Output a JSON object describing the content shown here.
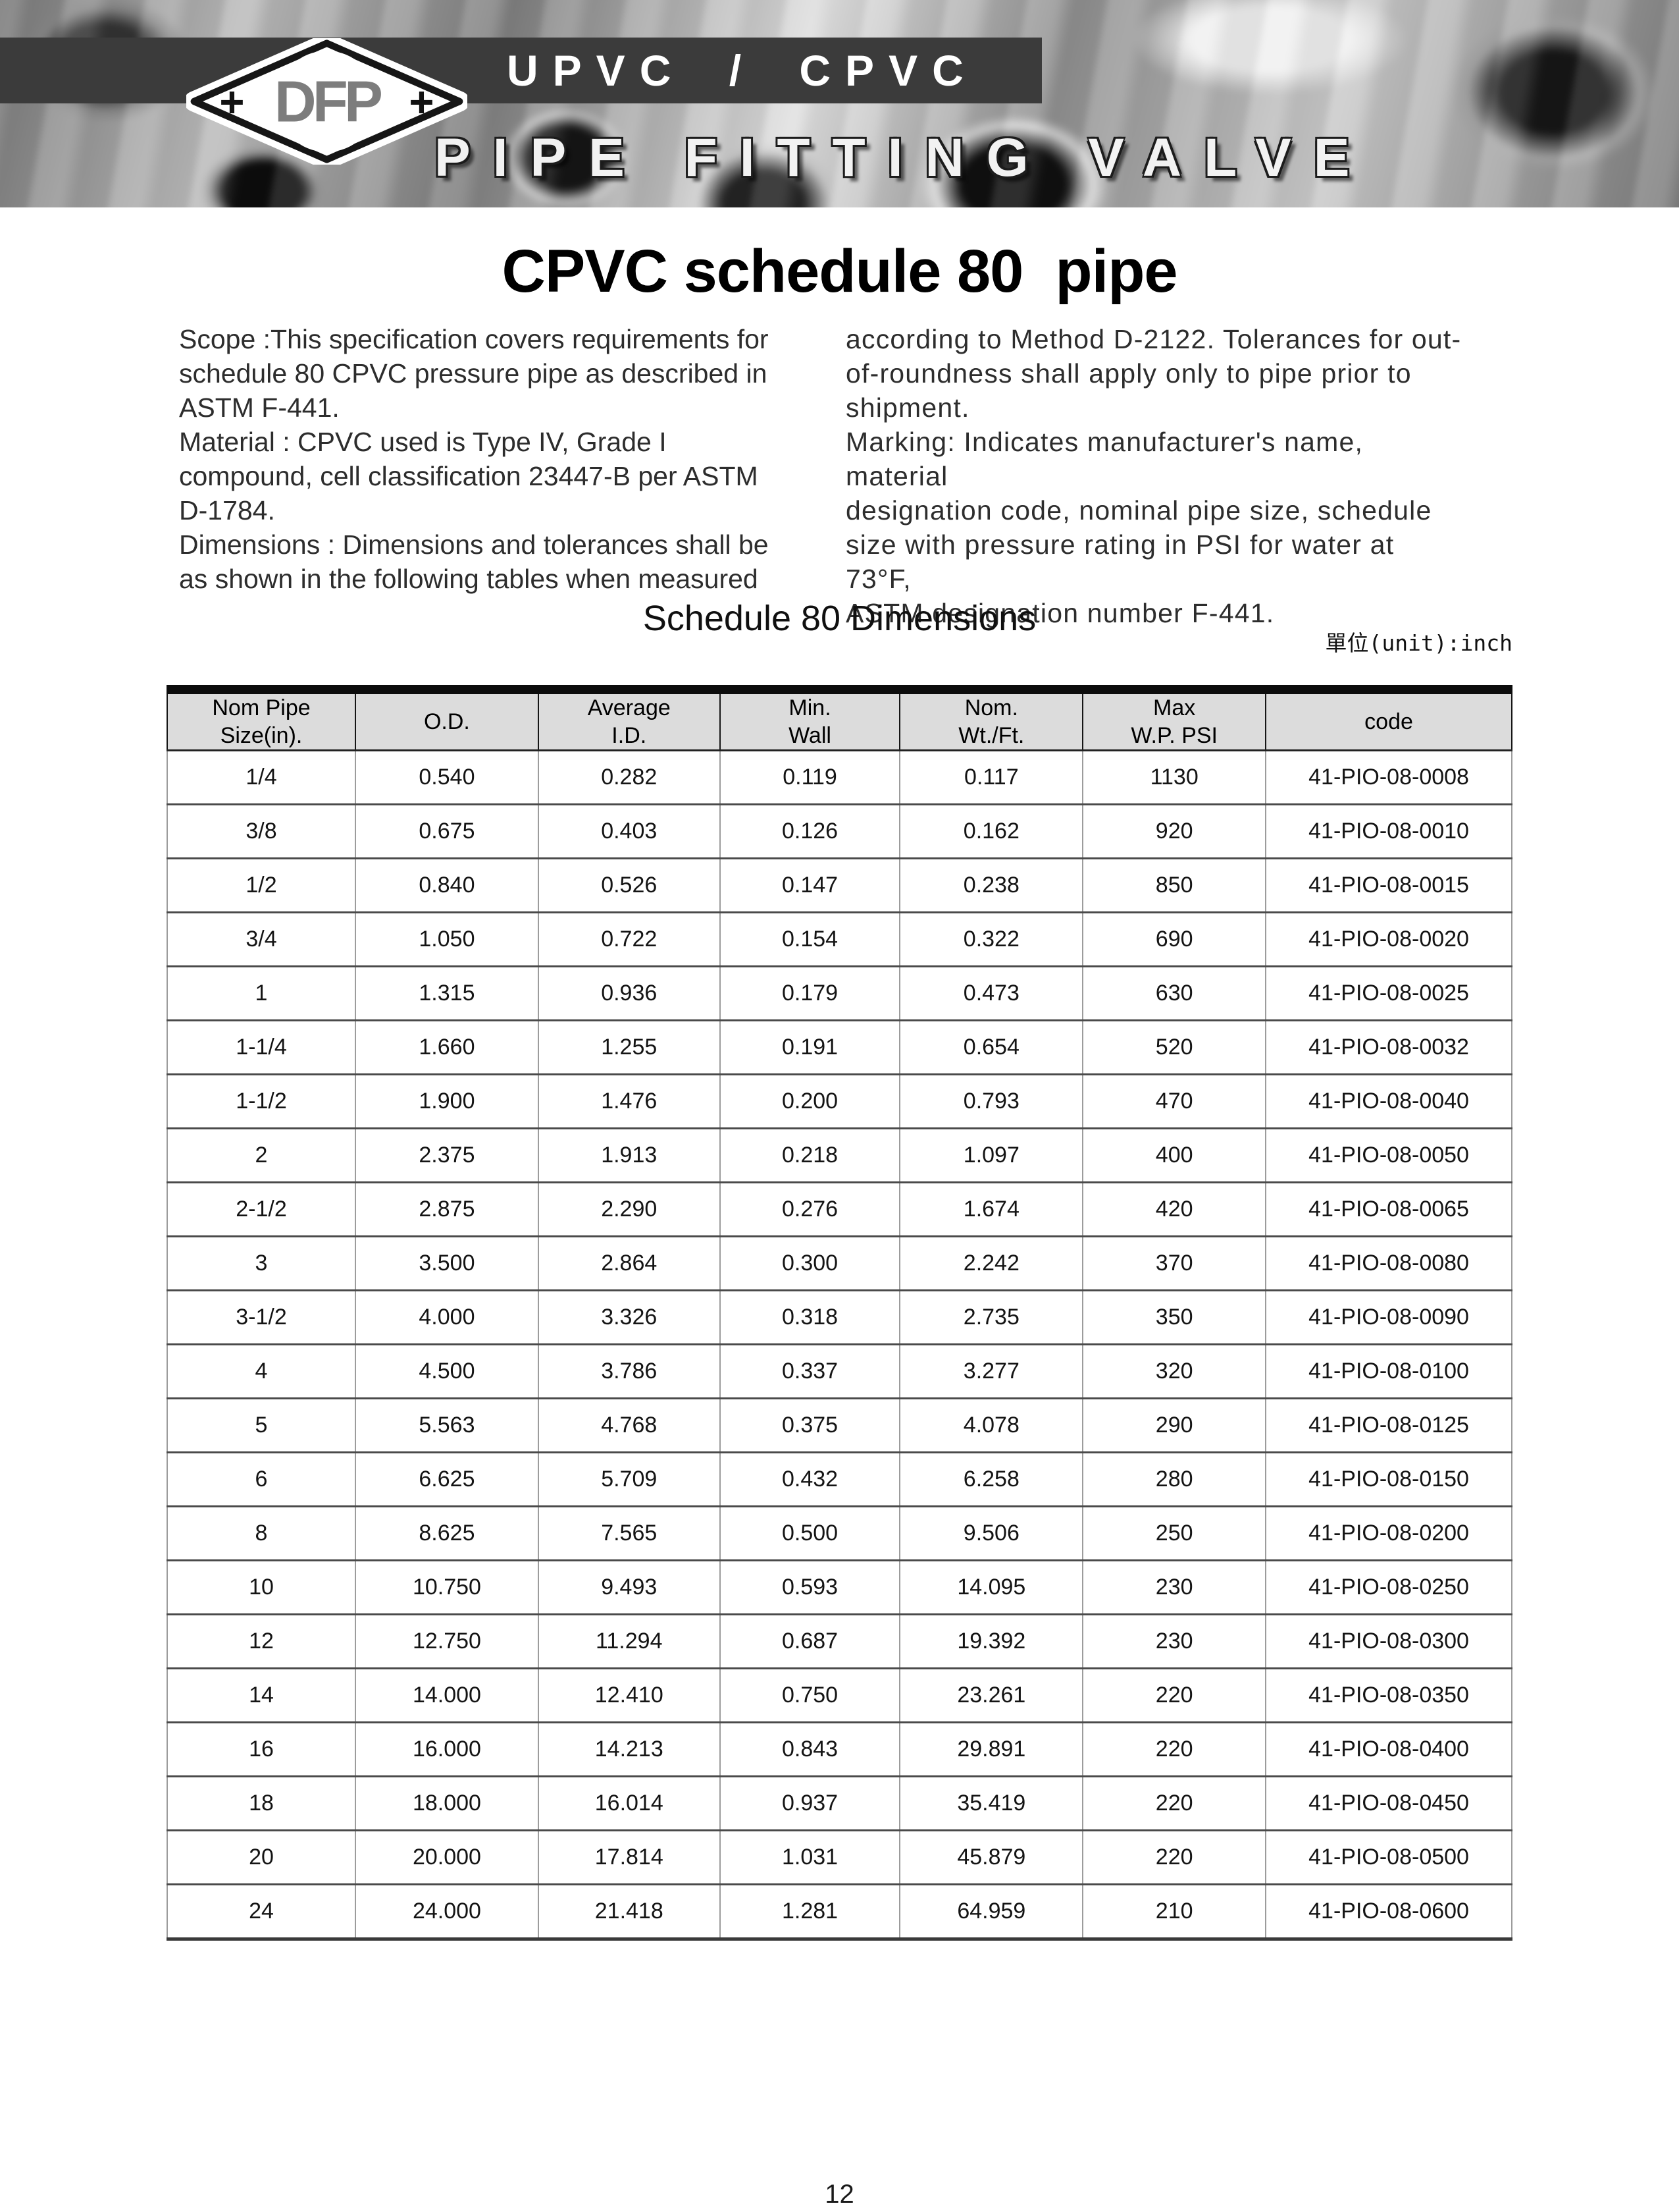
{
  "header": {
    "logo": {
      "text": "DFP",
      "plus_left": "+",
      "plus_right": "+"
    },
    "banner_title": "UPVC / CPVC",
    "banner_subtitle": "PIPE FITTING VALVE"
  },
  "page": {
    "title": "CPVC schedule 80  pipe",
    "intro_left": "Scope :This specification covers requirements for\nschedule 80 CPVC pressure pipe as described in\nASTM F-441.\nMaterial : CPVC used is Type IV, Grade I\ncompound, cell classification 23447-B per ASTM\nD-1784.\nDimensions : Dimensions and tolerances shall be\nas shown in the following tables when measured",
    "intro_right": "according to Method D-2122. Tolerances for out-\nof-roundness shall apply only to pipe prior to\nshipment.\nMarking: Indicates manufacturer's name, material\ndesignation code, nominal pipe size, schedule\nsize with pressure rating in PSI for water at 73°F,\nASTM designation number F-441.",
    "section_title": "Schedule 80 Dimensions",
    "unit_note": "單位(unit):inch",
    "page_number": "12"
  },
  "table": {
    "columns": [
      "Nom Pipe\nSize(in).",
      "O.D.",
      "Average\nI.D.",
      "Min.\nWall",
      "Nom.\nWt./Ft.",
      "Max\nW.P. PSI",
      "code"
    ],
    "column_keys": [
      "nom-pipe-size",
      "od",
      "average-id",
      "min-wall",
      "nom-wt-ft",
      "max-wp-psi",
      "code"
    ],
    "rows": [
      [
        "1/4",
        "0.540",
        "0.282",
        "0.119",
        "0.117",
        "1130",
        "41-PIO-08-0008"
      ],
      [
        "3/8",
        "0.675",
        "0.403",
        "0.126",
        "0.162",
        "920",
        "41-PIO-08-0010"
      ],
      [
        "1/2",
        "0.840",
        "0.526",
        "0.147",
        "0.238",
        "850",
        "41-PIO-08-0015"
      ],
      [
        "3/4",
        "1.050",
        "0.722",
        "0.154",
        "0.322",
        "690",
        "41-PIO-08-0020"
      ],
      [
        "1",
        "1.315",
        "0.936",
        "0.179",
        "0.473",
        "630",
        "41-PIO-08-0025"
      ],
      [
        "1-1/4",
        "1.660",
        "1.255",
        "0.191",
        "0.654",
        "520",
        "41-PIO-08-0032"
      ],
      [
        "1-1/2",
        "1.900",
        "1.476",
        "0.200",
        "0.793",
        "470",
        "41-PIO-08-0040"
      ],
      [
        "2",
        "2.375",
        "1.913",
        "0.218",
        "1.097",
        "400",
        "41-PIO-08-0050"
      ],
      [
        "2-1/2",
        "2.875",
        "2.290",
        "0.276",
        "1.674",
        "420",
        "41-PIO-08-0065"
      ],
      [
        "3",
        "3.500",
        "2.864",
        "0.300",
        "2.242",
        "370",
        "41-PIO-08-0080"
      ],
      [
        "3-1/2",
        "4.000",
        "3.326",
        "0.318",
        "2.735",
        "350",
        "41-PIO-08-0090"
      ],
      [
        "4",
        "4.500",
        "3.786",
        "0.337",
        "3.277",
        "320",
        "41-PIO-08-0100"
      ],
      [
        "5",
        "5.563",
        "4.768",
        "0.375",
        "4.078",
        "290",
        "41-PIO-08-0125"
      ],
      [
        "6",
        "6.625",
        "5.709",
        "0.432",
        "6.258",
        "280",
        "41-PIO-08-0150"
      ],
      [
        "8",
        "8.625",
        "7.565",
        "0.500",
        "9.506",
        "250",
        "41-PIO-08-0200"
      ],
      [
        "10",
        "10.750",
        "9.493",
        "0.593",
        "14.095",
        "230",
        "41-PIO-08-0250"
      ],
      [
        "12",
        "12.750",
        "11.294",
        "0.687",
        "19.392",
        "230",
        "41-PIO-08-0300"
      ],
      [
        "14",
        "14.000",
        "12.410",
        "0.750",
        "23.261",
        "220",
        "41-PIO-08-0350"
      ],
      [
        "16",
        "16.000",
        "14.213",
        "0.843",
        "29.891",
        "220",
        "41-PIO-08-0400"
      ],
      [
        "18",
        "18.000",
        "16.014",
        "0.937",
        "35.419",
        "220",
        "41-PIO-08-0450"
      ],
      [
        "20",
        "20.000",
        "17.814",
        "1.031",
        "45.879",
        "220",
        "41-PIO-08-0500"
      ],
      [
        "24",
        "24.000",
        "21.418",
        "1.281",
        "64.959",
        "210",
        "41-PIO-08-0600"
      ]
    ]
  },
  "colors": {
    "banner_band": "#3b3b3b",
    "table_header_bg": "#dcdcdc",
    "body_text": "#2d2d2d",
    "row_rule": "#4a4a4a"
  }
}
